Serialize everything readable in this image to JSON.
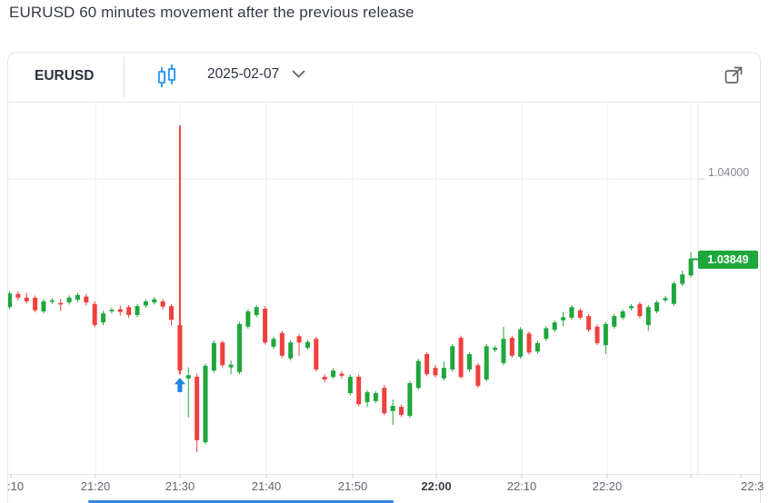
{
  "page": {
    "title": "EURUSD 60 minutes movement after the previous release"
  },
  "toolbar": {
    "symbol": "EURUSD",
    "chart_type_icon": "candlestick-icon",
    "date": "2025-02-07",
    "chevron_icon": "chevron-down-icon",
    "external_icon": "external-link-icon"
  },
  "colors": {
    "up": "#1fa73c",
    "down": "#ef403d",
    "badge_bg": "#1fa73c",
    "accent_blue": "#2196f3",
    "annotation_arrow": "#1e87dd",
    "grid": "#eeeef1",
    "axis_border": "#e3e5ea",
    "tick": "#c9ccd4"
  },
  "chart_data": {
    "type": "candlestick",
    "title": "EURUSD 1-minute candles, 60 minutes around the release",
    "start_time": "21:10",
    "interval_minutes": 1,
    "x_axis": {
      "labels": [
        ":10",
        "21:20",
        "21:30",
        "21:40",
        "21:50",
        "22:00",
        "22:10",
        "22:20",
        "22:3"
      ],
      "bold_label": "22:00"
    },
    "y_axis": {
      "gridline_label": "1.04000",
      "gridline_price": 1.04
    },
    "last_price": 1.03849,
    "last_price_label": "1.03849",
    "annotation": {
      "type": "arrow-up",
      "time": "21:30",
      "candle_index": 20,
      "color": "#1e87dd"
    },
    "ohlc_format": [
      "open",
      "high",
      "low",
      "close"
    ],
    "candles": [
      [
        1.03757,
        1.03787,
        1.03753,
        1.03783
      ],
      [
        1.03782,
        1.03787,
        1.0377,
        1.03775
      ],
      [
        1.03775,
        1.03784,
        1.03764,
        1.03768
      ],
      [
        1.03775,
        1.03779,
        1.03747,
        1.03751
      ],
      [
        1.03749,
        1.03772,
        1.03745,
        1.03768
      ],
      [
        1.03767,
        1.03774,
        1.03763,
        1.0377
      ],
      [
        1.03765,
        1.03772,
        1.0375,
        1.03762
      ],
      [
        1.03766,
        1.03779,
        1.03762,
        1.03775
      ],
      [
        1.03771,
        1.03784,
        1.03767,
        1.0378
      ],
      [
        1.03777,
        1.03782,
        1.0376,
        1.03766
      ],
      [
        1.03763,
        1.03768,
        1.03719,
        1.03723
      ],
      [
        1.03728,
        1.0375,
        1.03723,
        1.03745
      ],
      [
        1.03749,
        1.03756,
        1.03745,
        1.03752
      ],
      [
        1.03753,
        1.0376,
        1.03741,
        1.03748
      ],
      [
        1.03757,
        1.03761,
        1.03737,
        1.03742
      ],
      [
        1.03742,
        1.03763,
        1.03738,
        1.03759
      ],
      [
        1.0376,
        1.03772,
        1.03756,
        1.03768
      ],
      [
        1.03766,
        1.03776,
        1.03762,
        1.03772
      ],
      [
        1.03768,
        1.03772,
        1.03753,
        1.03758
      ],
      [
        1.03759,
        1.03763,
        1.03722,
        1.03733
      ],
      [
        1.03723,
        1.04101,
        1.0363,
        1.03637
      ],
      [
        1.03622,
        1.03643,
        1.03548,
        1.03628
      ],
      [
        1.03625,
        1.03631,
        1.03482,
        1.03505
      ],
      [
        1.03501,
        1.0365,
        1.03497,
        1.03646
      ],
      [
        1.03637,
        1.03694,
        1.03633,
        1.03689
      ],
      [
        1.0369,
        1.03694,
        1.03642,
        1.03647
      ],
      [
        1.03643,
        1.03656,
        1.0363,
        1.03648
      ],
      [
        1.03634,
        1.03729,
        1.0363,
        1.03725
      ],
      [
        1.0372,
        1.03753,
        1.03716,
        1.03749
      ],
      [
        1.03742,
        1.03761,
        1.03738,
        1.03757
      ],
      [
        1.03754,
        1.03759,
        1.03686,
        1.0369
      ],
      [
        1.03682,
        1.03701,
        1.03678,
        1.03697
      ],
      [
        1.03708,
        1.03712,
        1.03661,
        1.03665
      ],
      [
        1.0366,
        1.03694,
        1.03656,
        1.0369
      ],
      [
        1.03702,
        1.03706,
        1.03665,
        1.0369
      ],
      [
        1.0368,
        1.03695,
        1.03676,
        1.03691
      ],
      [
        1.03697,
        1.03701,
        1.03635,
        1.03639
      ],
      [
        1.03625,
        1.0363,
        1.03615,
        1.0362
      ],
      [
        1.03625,
        1.03641,
        1.03621,
        1.03637
      ],
      [
        1.03631,
        1.03636,
        1.03622,
        1.03627
      ],
      [
        1.03594,
        1.03629,
        1.0359,
        1.03625
      ],
      [
        1.03625,
        1.03629,
        1.03569,
        1.03573
      ],
      [
        1.03577,
        1.036,
        1.03568,
        1.03596
      ],
      [
        1.03579,
        1.03598,
        1.03575,
        1.03594
      ],
      [
        1.03604,
        1.0361,
        1.03552,
        1.03556
      ],
      [
        1.0356,
        1.03582,
        1.03534,
        1.0357
      ],
      [
        1.03568,
        1.03572,
        1.03549,
        1.03553
      ],
      [
        1.03551,
        1.03617,
        1.03547,
        1.03613
      ],
      [
        1.03604,
        1.03659,
        1.036,
        1.03655
      ],
      [
        1.03668,
        1.03672,
        1.03626,
        1.0363
      ],
      [
        1.03642,
        1.03647,
        1.03624,
        1.03628
      ],
      [
        1.03622,
        1.03654,
        1.03618,
        1.03642
      ],
      [
        1.03639,
        1.03687,
        1.03635,
        1.03683
      ],
      [
        1.03699,
        1.03703,
        1.03621,
        1.03625
      ],
      [
        1.03639,
        1.03672,
        1.03635,
        1.03668
      ],
      [
        1.03647,
        1.03651,
        1.03604,
        1.03608
      ],
      [
        1.0362,
        1.03687,
        1.03616,
        1.03683
      ],
      [
        1.03676,
        1.03684,
        1.03672,
        1.0368
      ],
      [
        1.03651,
        1.0372,
        1.03647,
        1.03697
      ],
      [
        1.03699,
        1.03703,
        1.03661,
        1.03665
      ],
      [
        1.03663,
        1.03719,
        1.03659,
        1.03715
      ],
      [
        1.03707,
        1.03711,
        1.03667,
        1.03671
      ],
      [
        1.03673,
        1.03693,
        1.03669,
        1.03689
      ],
      [
        1.03697,
        1.03721,
        1.03693,
        1.03717
      ],
      [
        1.03714,
        1.03732,
        1.0371,
        1.03728
      ],
      [
        1.03732,
        1.03748,
        1.03721,
        1.03738
      ],
      [
        1.03737,
        1.03761,
        1.03733,
        1.03757
      ],
      [
        1.03751,
        1.03755,
        1.03733,
        1.03737
      ],
      [
        1.0374,
        1.03744,
        1.0371,
        1.03714
      ],
      [
        1.0372,
        1.03724,
        1.03685,
        1.03689
      ],
      [
        1.03685,
        1.03729,
        1.03668,
        1.03725
      ],
      [
        1.0372,
        1.03744,
        1.03716,
        1.0374
      ],
      [
        1.03737,
        1.03753,
        1.03733,
        1.03749
      ],
      [
        1.03755,
        1.03763,
        1.03751,
        1.03759
      ],
      [
        1.03763,
        1.03767,
        1.03736,
        1.0374
      ],
      [
        1.03723,
        1.03761,
        1.03712,
        1.03757
      ],
      [
        1.03749,
        1.0377,
        1.03745,
        1.03766
      ],
      [
        1.0377,
        1.03778,
        1.03766,
        1.03774
      ],
      [
        1.03763,
        1.03806,
        1.03759,
        1.03802
      ],
      [
        1.03801,
        1.03826,
        1.03797,
        1.03819
      ],
      [
        1.03817,
        1.03861,
        1.03813,
        1.03849
      ]
    ]
  }
}
